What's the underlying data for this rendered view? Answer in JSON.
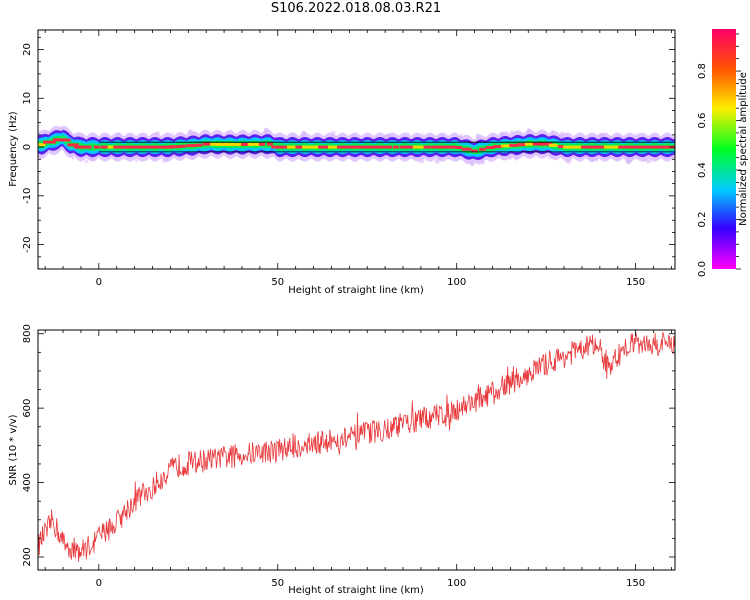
{
  "page_title": "S106.2022.018.08.03.R21",
  "chart_data": [
    {
      "type": "heatmap",
      "xlabel": "Height of straight line (km)",
      "ylabel": "Frequency (Hz)",
      "xlim": [
        -17,
        161
      ],
      "ylim": [
        -25,
        24
      ],
      "xticks": [
        0,
        50,
        100,
        150
      ],
      "yticks": [
        20,
        10,
        0,
        -10,
        -20
      ],
      "band_center_hz": [
        [
          -16,
          0.5
        ],
        [
          -13,
          1.2
        ],
        [
          -10,
          1.8
        ],
        [
          -8,
          0.6
        ],
        [
          -5,
          0.0
        ],
        [
          0,
          0.0
        ],
        [
          10,
          0.0
        ],
        [
          20,
          0.0
        ],
        [
          28,
          0.4
        ],
        [
          30,
          0.6
        ],
        [
          38,
          0.5
        ],
        [
          48,
          0.6
        ],
        [
          50,
          0.0
        ],
        [
          60,
          0.0
        ],
        [
          80,
          0.0
        ],
        [
          100,
          0.0
        ],
        [
          105,
          -0.8
        ],
        [
          108,
          -0.3
        ],
        [
          110,
          0.0
        ],
        [
          120,
          0.6
        ],
        [
          125,
          0.6
        ],
        [
          130,
          0.0
        ],
        [
          161,
          0.0
        ]
      ],
      "band_halfwidth_hz": 1.0,
      "colorbar": {
        "label": "Normalized spectral amplitude",
        "ticks": [
          0.0,
          0.2,
          0.4,
          0.6,
          0.8
        ],
        "range": [
          0.0,
          0.97
        ],
        "colormap": "gist_rainbow_r"
      }
    },
    {
      "type": "line",
      "xlabel": "Height of straight line (km)",
      "ylabel": "SNR (10 * v/v)",
      "xlim": [
        -17,
        161
      ],
      "ylim": [
        165,
        810
      ],
      "xticks": [
        0,
        50,
        100,
        150
      ],
      "yticks": [
        200,
        400,
        600,
        800
      ],
      "series": [
        {
          "name": "SNR",
          "color": "#e8393c",
          "trend": [
            [
              -17,
              230
            ],
            [
              -13,
              300
            ],
            [
              -10,
              240
            ],
            [
              -8,
              225
            ],
            [
              -5,
              215
            ],
            [
              -2,
              235
            ],
            [
              0,
              255
            ],
            [
              2,
              270
            ],
            [
              4,
              285
            ],
            [
              6,
              305
            ],
            [
              8,
              330
            ],
            [
              10,
              350
            ],
            [
              12,
              368
            ],
            [
              15,
              385
            ],
            [
              18,
              420
            ],
            [
              22,
              445
            ],
            [
              26,
              455
            ],
            [
              30,
              460
            ],
            [
              40,
              475
            ],
            [
              50,
              488
            ],
            [
              60,
              505
            ],
            [
              70,
              520
            ],
            [
              80,
              545
            ],
            [
              90,
              568
            ],
            [
              100,
              598
            ],
            [
              110,
              640
            ],
            [
              120,
              695
            ],
            [
              130,
              740
            ],
            [
              135,
              760
            ],
            [
              138,
              770
            ],
            [
              140,
              735
            ],
            [
              143,
              720
            ],
            [
              145,
              740
            ],
            [
              148,
              765
            ],
            [
              150,
              778
            ],
            [
              155,
              770
            ],
            [
              161,
              775
            ]
          ],
          "noise_amplitude": 32
        }
      ]
    }
  ]
}
